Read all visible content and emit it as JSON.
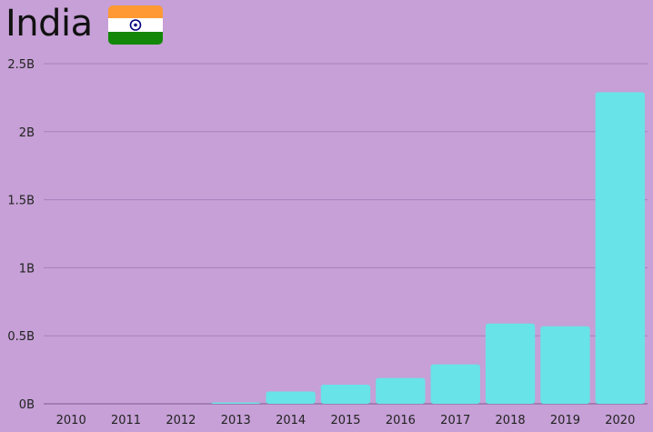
{
  "header": {
    "title": "India",
    "flag_icon": "india-flag-icon"
  },
  "colors": {
    "background": "#c6a0d6",
    "bar": "#68e3e8",
    "grid": "#a97fbe",
    "axis": "#7d5a8f",
    "flag_saffron": "#ff9933",
    "flag_white": "#ffffff",
    "flag_green": "#138808",
    "flag_chakra": "#000080"
  },
  "chart_data": {
    "type": "bar",
    "title": "India",
    "categories": [
      "2010",
      "2011",
      "2012",
      "2013",
      "2014",
      "2015",
      "2016",
      "2017",
      "2018",
      "2019",
      "2020"
    ],
    "values": [
      0,
      0,
      0,
      0.01,
      0.09,
      0.14,
      0.19,
      0.29,
      0.59,
      0.57,
      2.29
    ],
    "unit": "B",
    "ylim": [
      0,
      2.5
    ],
    "yticks": [
      0,
      0.5,
      1,
      1.5,
      2,
      2.5
    ],
    "ytick_labels": [
      "0B",
      "0.5B",
      "1B",
      "1.5B",
      "2B",
      "2.5B"
    ],
    "xlabel": "",
    "ylabel": "",
    "grid": true,
    "legend": "none"
  }
}
